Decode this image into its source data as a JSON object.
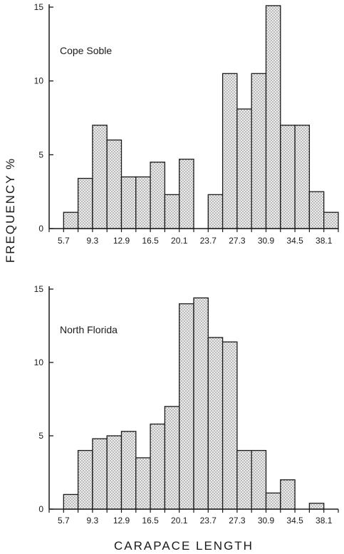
{
  "shared_ylabel": "FREQUENCY %",
  "shared_xlabel": "CARAPACE LENGTH",
  "colors": {
    "ink": "#1a1a1a",
    "bar_fill": "#ececec",
    "stipple": "#7a7a7a"
  },
  "chart_data": [
    {
      "type": "bar",
      "label": "Cope Soble",
      "yticks": [
        0,
        5,
        10,
        15
      ],
      "ylim": [
        0,
        15
      ],
      "xtick_labels": [
        "5.7",
        "9.3",
        "12.9",
        "16.5",
        "20.1",
        "23.7",
        "27.3",
        "30.9",
        "34.5",
        "38.1"
      ],
      "bins": [
        {
          "start": 5.7,
          "end": 7.5,
          "value": 1.1
        },
        {
          "start": 7.5,
          "end": 9.3,
          "value": 3.4
        },
        {
          "start": 9.3,
          "end": 11.1,
          "value": 7.0
        },
        {
          "start": 11.1,
          "end": 12.9,
          "value": 6.0
        },
        {
          "start": 12.9,
          "end": 14.7,
          "value": 3.5
        },
        {
          "start": 14.7,
          "end": 16.5,
          "value": 3.5
        },
        {
          "start": 16.5,
          "end": 18.3,
          "value": 4.5
        },
        {
          "start": 18.3,
          "end": 20.1,
          "value": 2.3
        },
        {
          "start": 20.1,
          "end": 21.9,
          "value": 4.7
        },
        {
          "start": 23.7,
          "end": 25.5,
          "value": 2.3
        },
        {
          "start": 25.5,
          "end": 27.3,
          "value": 10.5
        },
        {
          "start": 27.3,
          "end": 29.1,
          "value": 8.1
        },
        {
          "start": 29.1,
          "end": 30.9,
          "value": 10.5
        },
        {
          "start": 30.9,
          "end": 32.7,
          "value": 15.1
        },
        {
          "start": 32.7,
          "end": 34.5,
          "value": 7.0
        },
        {
          "start": 34.5,
          "end": 36.3,
          "value": 7.0
        },
        {
          "start": 36.3,
          "end": 38.1,
          "value": 2.5
        },
        {
          "start": 38.1,
          "end": 39.9,
          "value": 1.1
        }
      ]
    },
    {
      "type": "bar",
      "label": "North Florida",
      "yticks": [
        0,
        5,
        10,
        15
      ],
      "ylim": [
        0,
        15
      ],
      "xtick_labels": [
        "5.7",
        "9.3",
        "12.9",
        "16.5",
        "20.1",
        "23.7",
        "27.3",
        "30.9",
        "34.5",
        "38.1"
      ],
      "bins": [
        {
          "start": 5.7,
          "end": 7.5,
          "value": 1.0
        },
        {
          "start": 7.5,
          "end": 9.3,
          "value": 4.0
        },
        {
          "start": 9.3,
          "end": 11.1,
          "value": 4.8
        },
        {
          "start": 11.1,
          "end": 12.9,
          "value": 5.0
        },
        {
          "start": 12.9,
          "end": 14.7,
          "value": 5.3
        },
        {
          "start": 14.7,
          "end": 16.5,
          "value": 3.5
        },
        {
          "start": 16.5,
          "end": 18.3,
          "value": 5.8
        },
        {
          "start": 18.3,
          "end": 20.1,
          "value": 7.0
        },
        {
          "start": 20.1,
          "end": 21.9,
          "value": 14.0
        },
        {
          "start": 21.9,
          "end": 23.7,
          "value": 14.4
        },
        {
          "start": 23.7,
          "end": 25.5,
          "value": 11.7
        },
        {
          "start": 25.5,
          "end": 27.3,
          "value": 11.4
        },
        {
          "start": 27.3,
          "end": 29.1,
          "value": 4.0
        },
        {
          "start": 29.1,
          "end": 30.9,
          "value": 4.0
        },
        {
          "start": 30.9,
          "end": 32.7,
          "value": 1.1
        },
        {
          "start": 32.7,
          "end": 34.5,
          "value": 2.0
        },
        {
          "start": 36.3,
          "end": 38.1,
          "value": 0.4
        }
      ]
    }
  ]
}
